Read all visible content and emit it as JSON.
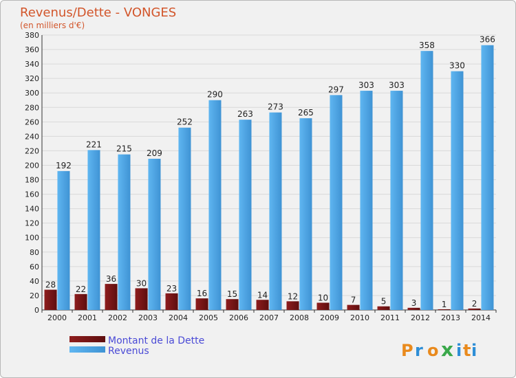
{
  "chart_data": {
    "type": "bar",
    "title": "Revenus/Dette - VONGES",
    "subtitle": "(en milliers d'€)",
    "categories": [
      "2000",
      "2001",
      "2002",
      "2003",
      "2004",
      "2005",
      "2006",
      "2007",
      "2008",
      "2009",
      "2010",
      "2011",
      "2012",
      "2013",
      "2014"
    ],
    "series": [
      {
        "name": "Montant de la Dette",
        "values": [
          28,
          22,
          36,
          30,
          23,
          16,
          15,
          14,
          12,
          10,
          7,
          5,
          3,
          1,
          2
        ],
        "color": "#7a1416"
      },
      {
        "name": "Revenus",
        "values": [
          192,
          221,
          215,
          209,
          252,
          290,
          263,
          273,
          265,
          297,
          303,
          303,
          358,
          330,
          366
        ],
        "color": "#4ba3e3"
      }
    ],
    "ylim": [
      0,
      380
    ],
    "ytick_step": 20,
    "grid": true,
    "legend_position": "bottom-left"
  },
  "brand": {
    "logo_text": "Proxiti",
    "colors": [
      "#e98a1d",
      "#2e8ed6",
      "#e98a1d",
      "#3aa84a",
      "#2e8ed6",
      "#e98a1d",
      "#2e8ed6"
    ]
  }
}
